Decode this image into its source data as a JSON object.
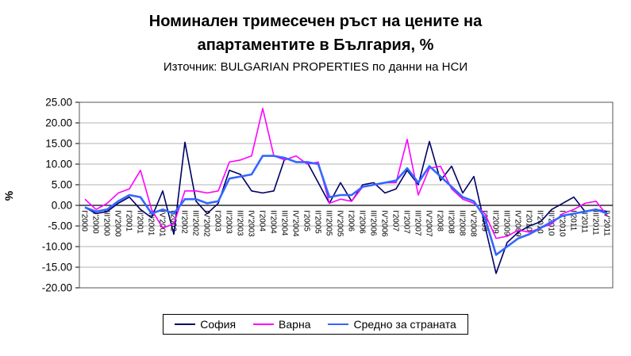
{
  "chart_data": {
    "type": "line",
    "title": "Номинален тримесечен ръст на цените на апартаментите в България, %",
    "subtitle": "Източник: BULGARIAN PROPERTIES по данни на НСИ",
    "ylabel": "%",
    "ylim": [
      -20,
      25
    ],
    "ytick_step": 5,
    "ytick_decimals": 2,
    "grid": true,
    "legend_position": "bottom",
    "categories": [
      "I'2000",
      "II'2000",
      "III'2000",
      "IV'2000",
      "I'2001",
      "II'2001",
      "III'2001",
      "IV'2001",
      "I'2002",
      "II'2002",
      "III'2002",
      "IV'2002",
      "I'2003",
      "II'2003",
      "III'2003",
      "IV'2003",
      "I'2004",
      "II'2004",
      "III'2004",
      "IV'2004",
      "I'2005",
      "II'2005",
      "III'2005",
      "IV'2005",
      "I'2006",
      "II'2006",
      "III'2006",
      "IV'2006",
      "I'2007",
      "II'2007",
      "III'2007",
      "IV'2007",
      "I'2008",
      "II'2008",
      "III'2008",
      "IV'2008",
      "I'2009",
      "II'2009",
      "III'2009",
      "IV'2009",
      "I'2010",
      "II'2010",
      "III'2010",
      "IV'2010",
      "I'2011",
      "II'2011",
      "III'2011",
      "IV'2011"
    ],
    "series": [
      {
        "name": "София",
        "color": "#000066",
        "width": 1.6,
        "values": [
          -0.5,
          -2.0,
          -1.5,
          0.5,
          2.0,
          -1.0,
          -3.0,
          3.5,
          -7.0,
          15.3,
          1.0,
          -2.0,
          0.5,
          8.5,
          7.5,
          3.5,
          3.0,
          3.5,
          11.5,
          10.5,
          10.5,
          5.5,
          0.5,
          5.5,
          1.0,
          5.0,
          5.5,
          3.0,
          4.0,
          8.5,
          5.0,
          15.5,
          6.0,
          9.5,
          3.0,
          7.0,
          -5.0,
          -16.5,
          -9.0,
          -6.5,
          -5.0,
          -4.0,
          -1.0,
          0.5,
          2.0,
          -1.5,
          -1.0,
          -1.5
        ]
      },
      {
        "name": "Варна",
        "color": "#FF00FF",
        "width": 1.6,
        "values": [
          1.5,
          -1.0,
          0.5,
          3.0,
          4.0,
          8.5,
          -1.0,
          -5.5,
          -4.5,
          3.5,
          3.5,
          3.0,
          3.5,
          10.5,
          11.0,
          12.0,
          23.5,
          12.0,
          11.0,
          12.0,
          10.0,
          10.5,
          0.5,
          1.5,
          1.0,
          4.5,
          5.0,
          5.5,
          5.5,
          16.0,
          2.5,
          9.0,
          9.5,
          4.0,
          1.5,
          0.5,
          -2.0,
          -8.0,
          -7.5,
          -6.0,
          -6.5,
          -5.5,
          -4.5,
          -2.0,
          -1.0,
          0.5,
          1.0,
          -2.5
        ]
      },
      {
        "name": "Средно за страната",
        "color": "#3366FF",
        "width": 2.6,
        "values": [
          -0.5,
          -1.5,
          -1.0,
          1.0,
          2.5,
          2.0,
          -2.0,
          -1.0,
          -2.0,
          1.5,
          1.5,
          0.5,
          1.0,
          6.5,
          7.0,
          7.5,
          12.0,
          12.0,
          11.5,
          10.5,
          10.5,
          10.0,
          2.0,
          2.5,
          2.5,
          4.5,
          5.0,
          5.5,
          6.0,
          9.0,
          5.5,
          9.5,
          7.0,
          4.5,
          2.0,
          1.0,
          -3.0,
          -12.0,
          -10.0,
          -8.0,
          -7.0,
          -5.5,
          -4.0,
          -2.5,
          -2.0,
          -1.5,
          -1.0,
          -2.0
        ]
      }
    ]
  }
}
